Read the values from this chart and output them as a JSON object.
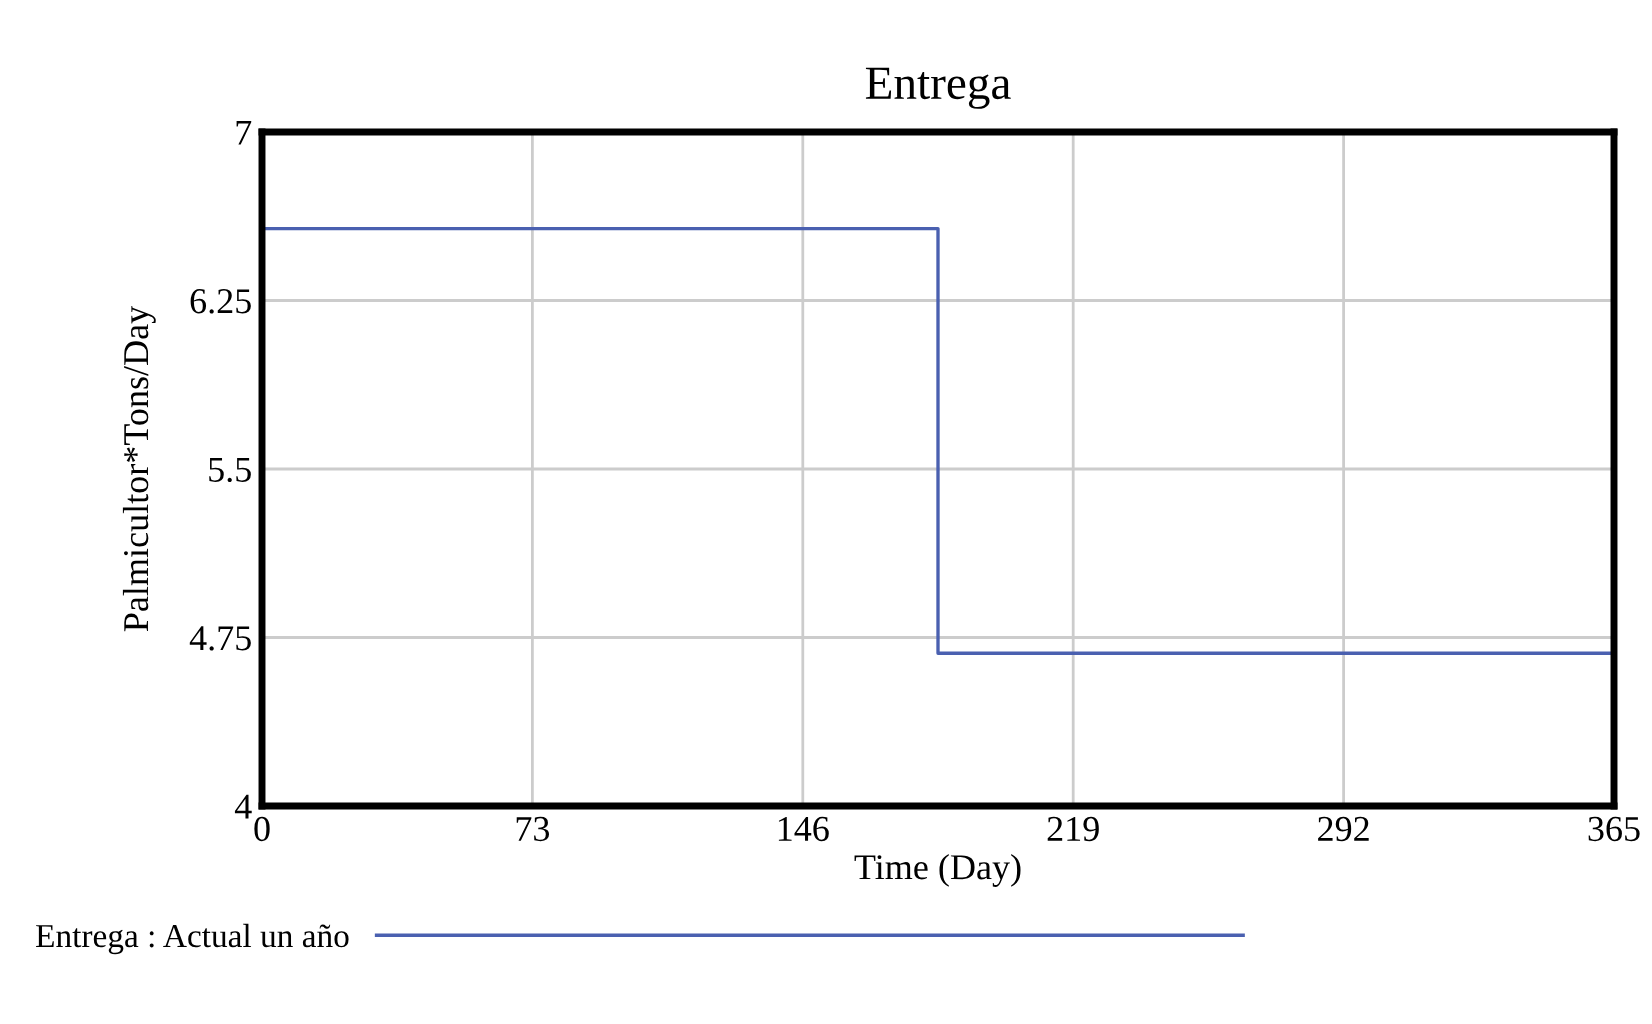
{
  "chart_data": {
    "type": "step",
    "title": "Entrega",
    "xlabel": "Time (Day)",
    "ylabel": "Palmicultor*Tons/Day",
    "x": [
      0,
      182.5,
      365,
      365
    ],
    "series": [
      {
        "name": "Entrega : Actual un año",
        "color": "#4a60b0",
        "values": [
          6.57,
          4.68,
          4.68,
          6.57
        ]
      }
    ],
    "xlim": [
      0,
      365
    ],
    "xticks": [
      0,
      73,
      146,
      219,
      292,
      365
    ],
    "ylim": [
      4,
      7
    ],
    "yticks": [
      4,
      4.75,
      5.5,
      6.25,
      7
    ],
    "grid": true,
    "legend": "bottom"
  }
}
